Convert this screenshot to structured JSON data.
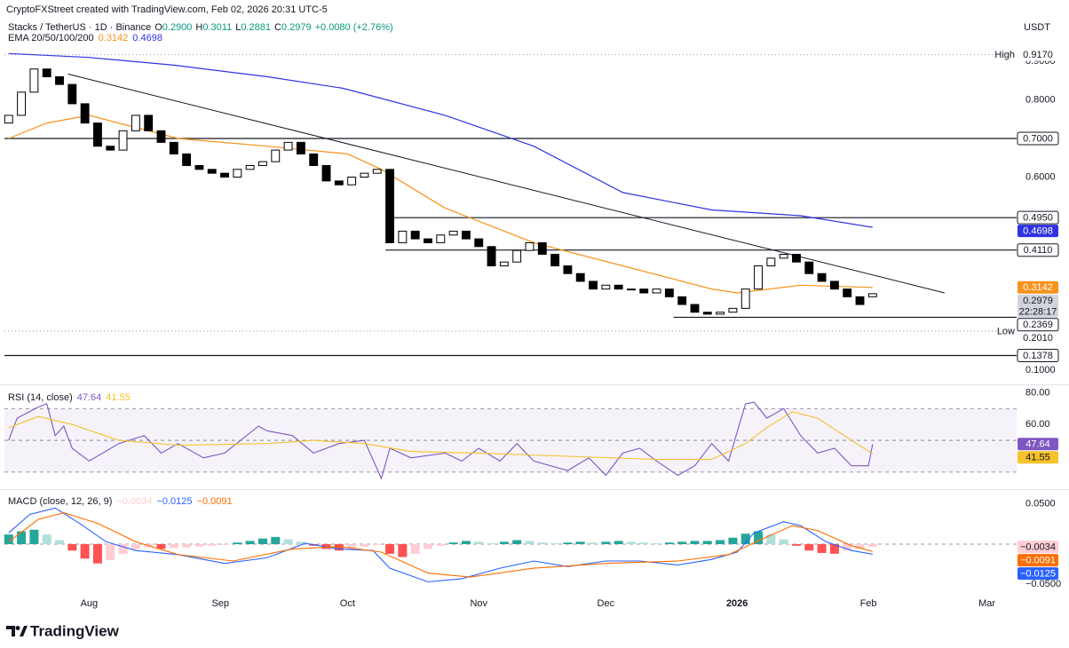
{
  "header": {
    "watermark": "CryptoFXStreet created with TradingView.com, Feb 02, 2026 20:31 UTC-5"
  },
  "footer": {
    "brand": "TradingView"
  },
  "chart_data": [
    {
      "type": "candlestick",
      "title": "Stacks / TetherUS · 1D · Binance",
      "ohlc_legend": [
        {
          "key": "O",
          "value": "0.2900"
        },
        {
          "key": "H",
          "value": "0.3011"
        },
        {
          "key": "L",
          "value": "0.2881"
        },
        {
          "key": "C",
          "value": "0.2979"
        }
      ],
      "change": "+0.0080 (+2.76%)",
      "change_color": "#089981",
      "indicator_label": "EMA 20/50/100/200",
      "currency": "USDT",
      "up_color": "#ffffff",
      "down_color": "#000000",
      "border_color": "#000000",
      "xlim": [
        -20,
        219
      ],
      "x": [
        -19,
        -16,
        -13,
        -10,
        -7,
        -4,
        -1,
        2,
        5,
        8,
        11,
        14,
        17,
        20,
        23,
        26,
        29,
        32,
        35,
        38,
        41,
        44,
        47,
        50,
        53,
        56,
        59,
        62,
        65,
        68,
        71,
        74,
        77,
        80,
        83,
        86,
        89,
        92,
        95,
        98,
        101,
        104,
        107,
        110,
        113,
        116,
        119,
        122,
        125,
        128,
        131,
        134,
        137,
        140,
        143,
        146,
        149,
        152,
        155,
        158,
        161,
        164,
        167,
        170,
        173,
        176,
        179,
        182,
        185
      ],
      "open": [
        0.74,
        0.76,
        0.82,
        0.88,
        0.86,
        0.84,
        0.79,
        0.74,
        0.68,
        0.67,
        0.72,
        0.76,
        0.72,
        0.69,
        0.66,
        0.63,
        0.62,
        0.61,
        0.6,
        0.62,
        0.63,
        0.64,
        0.67,
        0.69,
        0.66,
        0.63,
        0.59,
        0.58,
        0.6,
        0.61,
        0.62,
        0.43,
        0.46,
        0.44,
        0.43,
        0.45,
        0.46,
        0.44,
        0.42,
        0.37,
        0.38,
        0.41,
        0.43,
        0.4,
        0.37,
        0.35,
        0.33,
        0.31,
        0.32,
        0.31,
        0.31,
        0.3,
        0.31,
        0.29,
        0.27,
        0.25,
        0.245,
        0.25,
        0.26,
        0.31,
        0.37,
        0.39,
        0.4,
        0.38,
        0.35,
        0.33,
        0.31,
        0.29,
        0.29
      ],
      "high": {
        "text": "High",
        "value": 0.917,
        "label": "0.9170"
      },
      "low": {
        "text": "Low",
        "value": 0.201,
        "label": "0.2010"
      },
      "close": [
        0.76,
        0.82,
        0.88,
        0.86,
        0.84,
        0.79,
        0.74,
        0.68,
        0.67,
        0.72,
        0.76,
        0.72,
        0.69,
        0.66,
        0.63,
        0.62,
        0.61,
        0.6,
        0.62,
        0.63,
        0.64,
        0.67,
        0.69,
        0.66,
        0.63,
        0.59,
        0.58,
        0.6,
        0.61,
        0.62,
        0.43,
        0.46,
        0.44,
        0.43,
        0.45,
        0.46,
        0.44,
        0.42,
        0.37,
        0.38,
        0.41,
        0.43,
        0.4,
        0.37,
        0.35,
        0.33,
        0.31,
        0.32,
        0.31,
        0.31,
        0.3,
        0.31,
        0.29,
        0.27,
        0.25,
        0.245,
        0.25,
        0.26,
        0.31,
        0.37,
        0.39,
        0.4,
        0.38,
        0.35,
        0.33,
        0.31,
        0.29,
        0.27,
        0.2979
      ],
      "series": [
        {
          "color": "#f7931a",
          "label_color": "#ffffff",
          "last_label": "0.3142",
          "x": [
            -19,
            -10,
            0,
            21,
            42,
            61,
            69,
            84,
            105,
            126,
            147,
            153,
            168,
            185
          ],
          "values": [
            0.7,
            0.74,
            0.76,
            0.7,
            0.68,
            0.66,
            0.62,
            0.52,
            0.43,
            0.37,
            0.31,
            0.3,
            0.32,
            0.3142
          ]
        },
        {
          "color": "#2f34e0",
          "label_color": "#ffffff",
          "last_label": "0.4698",
          "x": [
            -19,
            0,
            20,
            42,
            60,
            84,
            105,
            126,
            147,
            168,
            185
          ],
          "values": [
            0.92,
            0.91,
            0.89,
            0.86,
            0.83,
            0.76,
            0.68,
            0.56,
            0.515,
            0.5,
            0.4698
          ]
        }
      ],
      "trendline": {
        "x": [
          -5,
          202
        ],
        "y": [
          0.867,
          0.3
        ],
        "color": "#131722"
      },
      "hlines": [
        {
          "value": 0.7,
          "label": "0.7000",
          "from": -20
        },
        {
          "value": 0.495,
          "label": "0.4950",
          "from": 70
        },
        {
          "value": 0.411,
          "label": "0.4110",
          "from": 70
        },
        {
          "value": 0.2369,
          "label": "0.2369",
          "from": 138
        },
        {
          "value": 0.1378,
          "label": "0.1378",
          "from": -20
        }
      ],
      "last": {
        "value": 0.2979,
        "label": "0.2979",
        "countdown": "22:28:17"
      },
      "ylim": [
        0.07,
        0.93
      ],
      "yticks": [
        {
          "value": 0.9,
          "label": "0.9000"
        },
        {
          "value": 0.8,
          "label": "0.8000"
        },
        {
          "value": 0.6,
          "label": "0.6000"
        },
        {
          "value": 0.1,
          "label": "0.1000"
        }
      ]
    },
    {
      "type": "line",
      "title": "RSI (14, close)",
      "xlim": [
        -20,
        219
      ],
      "ylim": [
        21,
        83
      ],
      "yticks": [
        {
          "value": 80,
          "label": "80.00"
        },
        {
          "value": 60,
          "label": "60.00"
        }
      ],
      "levels": [
        70,
        50,
        30
      ],
      "band": [
        30,
        70
      ],
      "band_color": "#7e57c2",
      "series": [
        {
          "color": "#7e57c2",
          "label_color": "#ffffff",
          "last_label": "47.64",
          "x": [
            -19,
            -17,
            -12,
            -10,
            -8,
            -6,
            -4,
            0,
            7,
            13,
            17,
            21,
            27,
            32,
            40,
            42,
            48,
            53,
            59,
            65,
            69,
            71,
            76,
            84,
            88,
            92,
            97,
            101,
            105,
            113,
            118,
            122,
            126,
            130,
            134,
            139,
            143,
            147,
            151,
            155,
            157,
            160,
            164,
            168,
            172,
            176,
            180,
            184,
            185
          ],
          "values": [
            50,
            64,
            71,
            73,
            53,
            59,
            45,
            37,
            48,
            53,
            42,
            48,
            39,
            42,
            59,
            56,
            53,
            42,
            48,
            50,
            26,
            45,
            39,
            42,
            37,
            45,
            37,
            48,
            37,
            31,
            39,
            28,
            42,
            45,
            37,
            28,
            34,
            48,
            37,
            73,
            74,
            64,
            70,
            53,
            42,
            45,
            34,
            34,
            47.64
          ]
        },
        {
          "color": "#f5c22b",
          "label_color": "#131722",
          "last_label": "41.55",
          "x": [
            -19,
            -12,
            -4,
            7,
            21,
            42,
            53,
            65,
            76,
            92,
            113,
            134,
            147,
            155,
            160,
            166,
            172,
            180,
            185
          ],
          "values": [
            58,
            65,
            60,
            50,
            47,
            48,
            50,
            48,
            43,
            42,
            40,
            38,
            38,
            48,
            58,
            68,
            64,
            50,
            41.55
          ]
        }
      ]
    },
    {
      "type": "macd",
      "title": "MACD (close, 12, 26, 9)",
      "xlim": [
        -20,
        219
      ],
      "xticks": [
        {
          "value": 0,
          "label": "Aug"
        },
        {
          "value": 31,
          "label": "Sep"
        },
        {
          "value": 61,
          "label": "Oct"
        },
        {
          "value": 92,
          "label": "Nov"
        },
        {
          "value": 122,
          "label": "Dec"
        },
        {
          "value": 153,
          "label": "2026",
          "bold": true
        },
        {
          "value": 184,
          "label": "Feb"
        },
        {
          "value": 212,
          "label": "Mar"
        }
      ],
      "ylim": [
        -0.063,
        0.063
      ],
      "yticks": [
        {
          "value": 0.05,
          "label": "0.0500"
        },
        {
          "value": -0.05,
          "label": "−0.0500"
        }
      ],
      "histogram": {
        "last_label": "−0.0034",
        "label_color": "#131722",
        "colors": [
          "#26a69a",
          "#b2dfdb",
          "#ffcdd2",
          "#ff5252"
        ],
        "x": [
          -19,
          -16,
          -13,
          -10,
          -7,
          -4,
          -1,
          2,
          5,
          8,
          11,
          14,
          17,
          20,
          23,
          26,
          29,
          32,
          35,
          38,
          41,
          44,
          47,
          50,
          53,
          56,
          59,
          62,
          65,
          68,
          71,
          74,
          77,
          80,
          83,
          86,
          89,
          92,
          95,
          98,
          101,
          104,
          107,
          110,
          113,
          116,
          119,
          122,
          125,
          128,
          131,
          134,
          137,
          140,
          143,
          146,
          149,
          152,
          155,
          158,
          161,
          164,
          167,
          170,
          173,
          176,
          179,
          182,
          185
        ],
        "values": [
          0.012,
          0.016,
          0.018,
          0.012,
          0.005,
          -0.008,
          -0.018,
          -0.024,
          -0.02,
          -0.012,
          -0.006,
          -0.004,
          -0.006,
          -0.005,
          -0.004,
          -0.003,
          -0.002,
          -0.001,
          0.002,
          0.004,
          0.007,
          0.009,
          0.006,
          0.003,
          -0.002,
          -0.006,
          -0.008,
          -0.006,
          -0.003,
          -0.001,
          -0.012,
          -0.016,
          -0.012,
          -0.006,
          -0.002,
          0.002,
          0.004,
          0.003,
          0.001,
          0.003,
          0.005,
          0.004,
          0.002,
          0.001,
          0.002,
          0.003,
          0.002,
          0.003,
          0.004,
          0.003,
          0.002,
          0.001,
          0.002,
          0.003,
          0.004,
          0.004,
          0.005,
          0.008,
          0.013,
          0.016,
          0.012,
          0.006,
          -0.002,
          -0.008,
          -0.011,
          -0.012,
          -0.008,
          -0.006,
          -0.0034
        ]
      },
      "series": [
        {
          "color": "#2962ff",
          "label_color": "#ffffff",
          "last_label": "−0.0125",
          "x": [
            -19,
            -14,
            -8,
            -2,
            4,
            11,
            21,
            32,
            42,
            51,
            59,
            67,
            71,
            80,
            88,
            97,
            105,
            113,
            122,
            130,
            139,
            147,
            153,
            157,
            164,
            168,
            174,
            180,
            185
          ],
          "values": [
            0.014,
            0.037,
            0.045,
            0.025,
            0.003,
            -0.008,
            -0.013,
            -0.024,
            -0.017,
            0.001,
            -0.006,
            -0.008,
            -0.03,
            -0.047,
            -0.043,
            -0.03,
            -0.021,
            -0.028,
            -0.021,
            -0.021,
            -0.026,
            -0.019,
            -0.01,
            0.014,
            0.028,
            0.023,
            0.003,
            -0.008,
            -0.0125
          ]
        },
        {
          "color": "#ff6d00",
          "label_color": "#ffffff",
          "last_label": "−0.0091",
          "x": [
            -19,
            -12,
            -6,
            2,
            11,
            21,
            34,
            48,
            59,
            69,
            80,
            90,
            105,
            122,
            139,
            151,
            160,
            166,
            172,
            180,
            185
          ],
          "values": [
            0.003,
            0.031,
            0.039,
            0.026,
            0.003,
            -0.013,
            -0.021,
            -0.006,
            -0.003,
            -0.01,
            -0.036,
            -0.041,
            -0.03,
            -0.024,
            -0.021,
            -0.013,
            0.009,
            0.023,
            0.017,
            -0.002,
            -0.0091
          ]
        }
      ]
    }
  ]
}
